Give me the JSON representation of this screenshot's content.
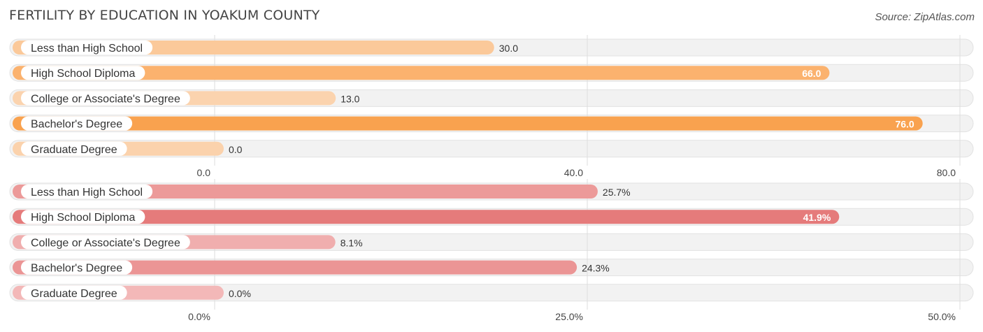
{
  "title": "FERTILITY BY EDUCATION IN YOAKUM COUNTY",
  "source": "Source: ZipAtlas.com",
  "chart_data": [
    {
      "type": "bar",
      "orientation": "horizontal",
      "categories": [
        "Less than High School",
        "High School Diploma",
        "College or Associate's Degree",
        "Bachelor's Degree",
        "Graduate Degree"
      ],
      "values": [
        30.0,
        66.0,
        13.0,
        76.0,
        0.0
      ],
      "value_labels": [
        "30.0",
        "66.0",
        "13.0",
        "76.0",
        "0.0"
      ],
      "xlim": [
        0,
        80
      ],
      "ticks": [
        0,
        40,
        80
      ],
      "tick_labels": [
        "0.0",
        "40.0",
        "80.0"
      ],
      "bar_colors": [
        "#fbc99a",
        "#fbb26e",
        "#fbd3ae",
        "#f9a24f",
        "#fbd2ac"
      ],
      "grid": true
    },
    {
      "type": "bar",
      "orientation": "horizontal",
      "categories": [
        "Less than High School",
        "High School Diploma",
        "College or Associate's Degree",
        "Bachelor's Degree",
        "Graduate Degree"
      ],
      "values": [
        25.7,
        41.9,
        8.1,
        24.3,
        0.0
      ],
      "value_labels": [
        "25.7%",
        "41.9%",
        "8.1%",
        "24.3%",
        "0.0%"
      ],
      "xlim": [
        0,
        50
      ],
      "ticks": [
        0,
        25,
        50
      ],
      "tick_labels": [
        "0.0%",
        "25.0%",
        "50.0%"
      ],
      "bar_colors": [
        "#ec9a99",
        "#e57b7b",
        "#f0aeae",
        "#eb9595",
        "#f3b8b8"
      ],
      "grid": true
    }
  ]
}
